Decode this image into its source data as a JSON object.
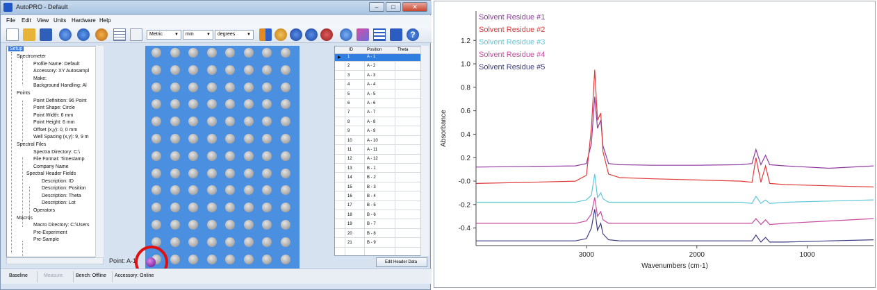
{
  "window": {
    "title": "AutoPRO - Default",
    "controls": [
      "–",
      "□",
      "✕"
    ]
  },
  "menu": [
    "File",
    "Edit",
    "View",
    "Units",
    "Hardware",
    "Help"
  ],
  "toolbar": {
    "units_system": "Metric",
    "length_unit": "mm",
    "angle_unit": "degrees"
  },
  "tree": {
    "root": "Setup",
    "items": [
      "Spectrometer",
      "Profile Name: Default",
      "Accessory: XY Autosampl",
      "Make:",
      "Background Handling: Al",
      "Points",
      "Point Definition: 96 Point",
      "Point Shape: Circle",
      "Point Width: 6 mm",
      "Point Height: 6 mm",
      "Offset (x,y): 0, 0 mm",
      "Well Spacing (x,y): 9, 9 m",
      "Spectral Files",
      "Spectra Directory: C:\\",
      "File Format: Timestamp",
      "Company Name",
      "Spectral Header Fields",
      "Description: ID",
      "Description: Position",
      "Description: Theta",
      "Description: Lot",
      "Operators",
      "Macros",
      "Macro Directory: C:\\Users",
      "Pre-Experiment",
      "Pre-Sample"
    ]
  },
  "plate": {
    "point_label": "Point: A-1",
    "columns": 12,
    "rows": 8,
    "selected": "A-1"
  },
  "grid": {
    "headers": [
      "ID",
      "Position",
      "Theta"
    ],
    "rows": [
      [
        "1",
        "A - 1"
      ],
      [
        "2",
        "A - 2"
      ],
      [
        "3",
        "A - 3"
      ],
      [
        "4",
        "A - 4"
      ],
      [
        "5",
        "A - 5"
      ],
      [
        "6",
        "A - 6"
      ],
      [
        "7",
        "A - 7"
      ],
      [
        "8",
        "A - 8"
      ],
      [
        "9",
        "A - 9"
      ],
      [
        "10",
        "A - 10"
      ],
      [
        "11",
        "A - 11"
      ],
      [
        "12",
        "A - 12"
      ],
      [
        "13",
        "B - 1"
      ],
      [
        "14",
        "B - 2"
      ],
      [
        "15",
        "B - 3"
      ],
      [
        "16",
        "B - 4"
      ],
      [
        "17",
        "B - 5"
      ],
      [
        "18",
        "B - 6"
      ],
      [
        "19",
        "B - 7"
      ],
      [
        "20",
        "B - 8"
      ],
      [
        "21",
        "B - 9"
      ]
    ],
    "selected_index": 0,
    "edit_button": "Edit Header Data"
  },
  "status": {
    "baseline": "Baseline",
    "measure": "Measure",
    "bench": "Bench: Offline",
    "accessory": "Accessory: Online"
  },
  "chart_data": {
    "type": "line",
    "title": "",
    "xlabel": "Wavenumbers (cm-1)",
    "ylabel": "Absorbance",
    "xlim": [
      4000,
      400
    ],
    "ylim": [
      -0.55,
      1.45
    ],
    "x_ticks": [
      3000,
      2000,
      1000
    ],
    "y_ticks": [
      -0.4,
      -0.2,
      -0.0,
      0.2,
      0.4,
      0.6,
      0.8,
      1.0,
      1.2
    ],
    "y_tick_labels": [
      "-0.4",
      "-0.2",
      "-0.0",
      "0.2",
      "0.4",
      "0.6",
      "0.8",
      "1.0",
      "1.2"
    ],
    "legend_position": "top-left",
    "x": [
      4000,
      3500,
      3100,
      3000,
      2955,
      2925,
      2900,
      2870,
      2850,
      2800,
      2700,
      2400,
      2000,
      1600,
      1500,
      1465,
      1420,
      1378,
      1340,
      1200,
      800,
      400
    ],
    "series": [
      {
        "name": "Solvent Residue #1",
        "color": "#8e3a9e",
        "values": [
          0.12,
          0.125,
          0.13,
          0.15,
          0.32,
          0.72,
          0.45,
          0.52,
          0.3,
          0.15,
          0.14,
          0.135,
          0.135,
          0.14,
          0.15,
          0.27,
          0.14,
          0.22,
          0.14,
          0.13,
          0.11,
          0.13
        ]
      },
      {
        "name": "Solvent Residue #2",
        "color": "#e03a3a",
        "values": [
          -0.02,
          -0.01,
          0.0,
          0.05,
          0.45,
          0.95,
          0.52,
          0.58,
          0.25,
          0.06,
          0.03,
          0.02,
          0.01,
          0.0,
          -0.01,
          0.2,
          -0.01,
          0.13,
          -0.02,
          -0.03,
          -0.04,
          -0.05
        ]
      },
      {
        "name": "Solvent Residue #3",
        "color": "#5fc7d8",
        "values": [
          -0.18,
          -0.18,
          -0.18,
          -0.16,
          -0.12,
          0.06,
          -0.14,
          -0.1,
          -0.15,
          -0.18,
          -0.18,
          -0.18,
          -0.18,
          -0.18,
          -0.19,
          -0.13,
          -0.19,
          -0.16,
          -0.19,
          -0.18,
          -0.17,
          -0.16
        ]
      },
      {
        "name": "Solvent Residue #4",
        "color": "#c9499e",
        "values": [
          -0.36,
          -0.36,
          -0.36,
          -0.34,
          -0.28,
          -0.14,
          -0.3,
          -0.26,
          -0.33,
          -0.36,
          -0.36,
          -0.36,
          -0.36,
          -0.36,
          -0.36,
          -0.32,
          -0.37,
          -0.33,
          -0.37,
          -0.36,
          -0.34,
          -0.32
        ]
      },
      {
        "name": "Solvent Residue #5",
        "color": "#3a3a82",
        "values": [
          -0.51,
          -0.51,
          -0.51,
          -0.49,
          -0.4,
          -0.24,
          -0.42,
          -0.36,
          -0.45,
          -0.5,
          -0.51,
          -0.51,
          -0.51,
          -0.51,
          -0.51,
          -0.46,
          -0.52,
          -0.48,
          -0.52,
          -0.52,
          -0.51,
          -0.5
        ]
      }
    ]
  }
}
